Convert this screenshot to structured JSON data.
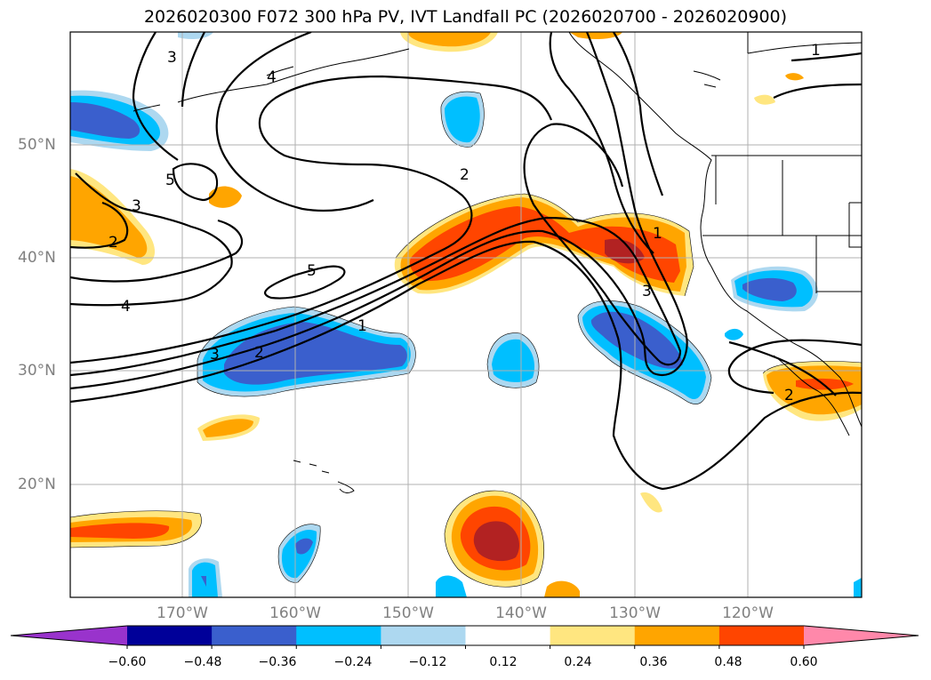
{
  "title": "2026020300 F072 300 hPa PV, IVT Landfall PC (2026020700 - 2026020900)",
  "lat_labels": [
    "50°N",
    "40°N",
    "30°N",
    "20°N"
  ],
  "lon_labels": [
    "170°W",
    "160°W",
    "150°W",
    "140°W",
    "130°W",
    "120°W"
  ],
  "colorbar": {
    "ticks": [
      "−0.60",
      "−0.48",
      "−0.36",
      "−0.24",
      "−0.12",
      "0.12",
      "0.24",
      "0.36",
      "0.48",
      "0.60"
    ],
    "colors": [
      "#9933cc",
      "#000099",
      "#3a5fcd",
      "#00bfff",
      "#add8f0",
      "#ffffff",
      "#ffe680",
      "#ffa500",
      "#ff4500",
      "#b22222",
      "#ff88aa"
    ]
  },
  "contour_labels": [
    "3",
    "4",
    "5",
    "3",
    "2",
    "4",
    "5",
    "2",
    "1",
    "3",
    "2",
    "1",
    "1",
    "3",
    "2"
  ]
}
